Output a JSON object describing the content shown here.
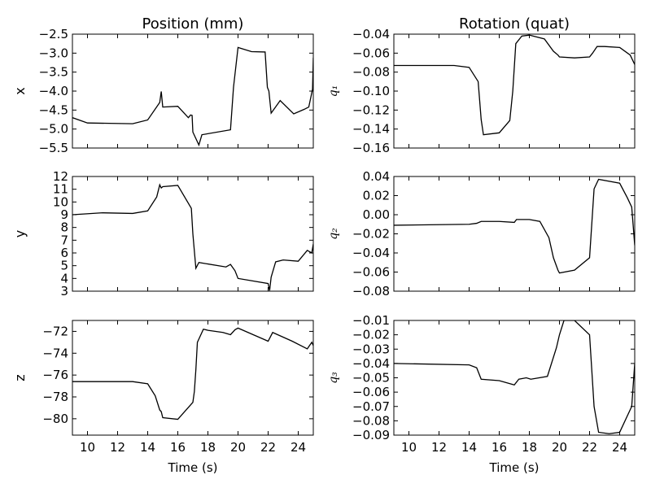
{
  "figure": {
    "column_titles": [
      "Position (mm)",
      "Rotation (quat)"
    ],
    "xlabel": "Time (s)"
  },
  "chart_data": [
    {
      "type": "line",
      "ylabel": "x",
      "xlim": [
        9,
        25
      ],
      "ylim": [
        -5.5,
        -2.5
      ],
      "x_ticks": [
        10,
        12,
        14,
        16,
        18,
        20,
        22,
        24
      ],
      "y_ticks": [
        -2.5,
        -3.0,
        -3.5,
        -4.0,
        -4.5,
        -5.0,
        -5.5
      ],
      "y_tick_labels": [
        "−2.5",
        "−3.0",
        "−3.5",
        "−4.0",
        "−4.5",
        "−5.0",
        "−5.5"
      ],
      "series": [
        {
          "x": [
            9,
            10,
            13,
            14,
            14.8,
            14.9,
            15.0,
            16,
            16.7,
            16.85,
            16.95,
            17,
            17.4,
            17.6,
            19.5,
            19.7,
            20,
            20.9,
            21.8,
            21.95,
            22.05,
            22.2,
            22.8,
            23.7,
            24.4,
            24.7,
            24.95,
            25
          ],
          "y": [
            -4.7,
            -4.84,
            -4.86,
            -4.76,
            -4.3,
            -4.01,
            -4.42,
            -4.4,
            -4.7,
            -4.63,
            -4.64,
            -5.08,
            -5.42,
            -5.15,
            -5.02,
            -3.9,
            -2.85,
            -2.96,
            -2.97,
            -3.9,
            -4.0,
            -4.58,
            -4.25,
            -4.6,
            -4.48,
            -4.42,
            -3.95,
            -3.12
          ]
        }
      ]
    },
    {
      "type": "line",
      "ylabel": "y",
      "xlim": [
        9,
        25
      ],
      "ylim": [
        3,
        12
      ],
      "x_ticks": [
        10,
        12,
        14,
        16,
        18,
        20,
        22,
        24
      ],
      "y_ticks": [
        12,
        11,
        10,
        9,
        8,
        7,
        6,
        5,
        4,
        3
      ],
      "y_tick_labels": [
        "12",
        "11",
        "10",
        "9",
        "8",
        "7",
        "6",
        "5",
        "4",
        "3"
      ],
      "series": [
        {
          "x": [
            9,
            11,
            13,
            14,
            14.6,
            14.8,
            14.9,
            15,
            16,
            16.9,
            17,
            17.2,
            17.4,
            19.2,
            19.5,
            19.8,
            20,
            22.0,
            22.1,
            22.2,
            22.5,
            23,
            24,
            24.6,
            24.9,
            25
          ],
          "y": [
            9.0,
            9.15,
            9.1,
            9.3,
            10.4,
            11.35,
            11.1,
            11.2,
            11.3,
            9.5,
            7.5,
            4.8,
            5.25,
            4.9,
            5.1,
            4.6,
            4.0,
            3.6,
            3.05,
            4.1,
            5.3,
            5.45,
            5.35,
            6.2,
            6.0,
            6.7
          ]
        }
      ]
    },
    {
      "type": "line",
      "ylabel": "z",
      "xlim": [
        9,
        25
      ],
      "ylim": [
        -81.5,
        -71
      ],
      "x_ticks": [
        10,
        12,
        14,
        16,
        18,
        20,
        22,
        24
      ],
      "y_ticks": [
        -72,
        -74,
        -76,
        -78,
        -80
      ],
      "y_tick_labels": [
        "−72",
        "−74",
        "−76",
        "−78",
        "−80"
      ],
      "series": [
        {
          "x": [
            9,
            10,
            13,
            14,
            14.5,
            14.8,
            14.9,
            15,
            16,
            17,
            17.1,
            17.2,
            17.3,
            17.7,
            18,
            19,
            19.5,
            19.8,
            20,
            22,
            22.3,
            23.6,
            24.6,
            24.9,
            25
          ],
          "y": [
            -76.6,
            -76.6,
            -76.6,
            -76.8,
            -77.9,
            -79.2,
            -79.35,
            -79.9,
            -80.05,
            -78.5,
            -77.5,
            -75.5,
            -73.0,
            -71.8,
            -71.9,
            -72.1,
            -72.3,
            -71.85,
            -71.7,
            -72.9,
            -72.1,
            -72.9,
            -73.6,
            -73.0,
            -73.3
          ]
        }
      ]
    },
    {
      "type": "line",
      "ylabel": "q₁",
      "xlim": [
        9,
        25
      ],
      "ylim": [
        -0.16,
        -0.04
      ],
      "x_ticks": [
        10,
        12,
        14,
        16,
        18,
        20,
        22,
        24
      ],
      "y_ticks": [
        -0.04,
        -0.06,
        -0.08,
        -0.1,
        -0.12,
        -0.14,
        -0.16
      ],
      "y_tick_labels": [
        "−0.04",
        "−0.06",
        "−0.08",
        "−0.10",
        "−0.12",
        "−0.14",
        "−0.16"
      ],
      "series": [
        {
          "x": [
            9,
            13,
            14,
            14.6,
            14.8,
            14.95,
            16,
            16.7,
            16.9,
            17.1,
            17.5,
            18.0,
            19.0,
            19.6,
            19.9,
            20.0,
            21,
            22,
            22.2,
            22.5,
            23,
            24,
            24.7,
            25
          ],
          "y": [
            -0.073,
            -0.073,
            -0.075,
            -0.09,
            -0.13,
            -0.146,
            -0.144,
            -0.131,
            -0.1,
            -0.05,
            -0.042,
            -0.041,
            -0.045,
            -0.058,
            -0.062,
            -0.064,
            -0.065,
            -0.064,
            -0.06,
            -0.053,
            -0.053,
            -0.054,
            -0.062,
            -0.072
          ]
        }
      ]
    },
    {
      "type": "line",
      "ylabel": "q₂",
      "xlim": [
        9,
        25
      ],
      "ylim": [
        -0.08,
        0.04
      ],
      "x_ticks": [
        10,
        12,
        14,
        16,
        18,
        20,
        22,
        24
      ],
      "y_ticks": [
        0.04,
        0.02,
        0.0,
        -0.02,
        -0.04,
        -0.06,
        -0.08
      ],
      "y_tick_labels": [
        "0.04",
        "0.02",
        "0.00",
        "−0.02",
        "−0.04",
        "−0.06",
        "−0.08"
      ],
      "series": [
        {
          "x": [
            9,
            14,
            14.5,
            14.8,
            16,
            17,
            17.15,
            17.4,
            18,
            18.7,
            19.3,
            19.6,
            19.9,
            20,
            21,
            22,
            22.3,
            22.6,
            24,
            24.5,
            24.8,
            25
          ],
          "y": [
            -0.011,
            -0.01,
            -0.009,
            -0.007,
            -0.007,
            -0.008,
            -0.005,
            -0.005,
            -0.005,
            -0.007,
            -0.024,
            -0.045,
            -0.058,
            -0.061,
            -0.058,
            -0.045,
            0.027,
            0.037,
            0.033,
            0.018,
            0.008,
            -0.032
          ]
        }
      ]
    },
    {
      "type": "line",
      "ylabel": "q₃",
      "xlim": [
        9,
        25
      ],
      "ylim": [
        -0.09,
        -0.01
      ],
      "x_ticks": [
        10,
        12,
        14,
        16,
        18,
        20,
        22,
        24
      ],
      "y_ticks": [
        -0.01,
        -0.02,
        -0.03,
        -0.04,
        -0.05,
        -0.06,
        -0.07,
        -0.08,
        -0.09
      ],
      "y_tick_labels": [
        "−0.01",
        "−0.02",
        "−0.03",
        "−0.04",
        "−0.05",
        "−0.06",
        "−0.07",
        "−0.08",
        "−0.09"
      ],
      "series": [
        {
          "x": [
            9,
            14,
            14.5,
            14.8,
            16,
            17,
            17.3,
            17.8,
            18.1,
            19.2,
            19.8,
            20,
            20.3,
            21,
            22,
            22.3,
            22.6,
            23.3,
            24,
            24.8,
            25
          ],
          "y": [
            -0.04,
            -0.041,
            -0.043,
            -0.051,
            -0.052,
            -0.055,
            -0.051,
            -0.05,
            -0.051,
            -0.049,
            -0.029,
            -0.02,
            -0.01,
            -0.01,
            -0.02,
            -0.07,
            -0.088,
            -0.089,
            -0.088,
            -0.07,
            -0.04
          ]
        }
      ]
    }
  ]
}
